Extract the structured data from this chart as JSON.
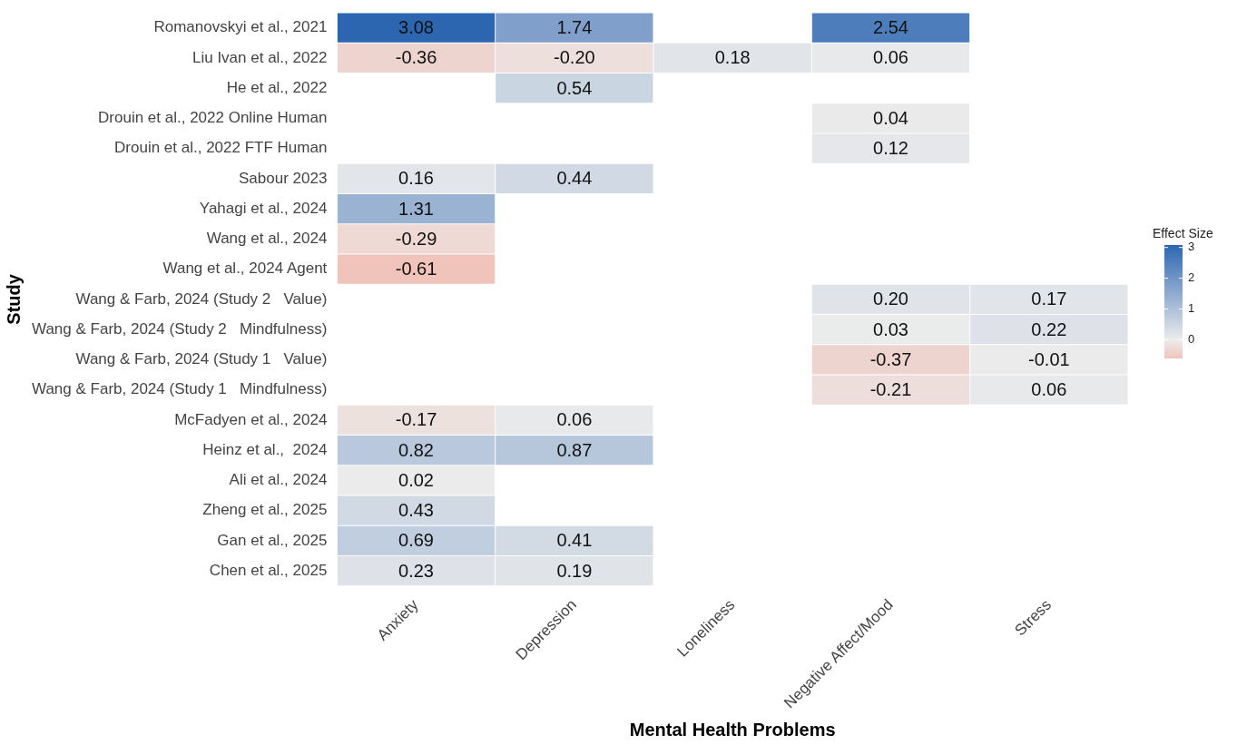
{
  "chart_data": {
    "type": "heatmap",
    "xlabel": "Mental Health Problems",
    "ylabel": "Study",
    "legend_title": "Effect Size",
    "categories": [
      "Anxiety",
      "Depression",
      "Loneliness",
      "Negative Affect/Mood",
      "Stress"
    ],
    "y_categories": [
      "Romanovskyi et al., 2021",
      "Liu Ivan et al., 2022",
      "He et al., 2022",
      "Drouin et al., 2022 Online Human",
      "Drouin et al., 2022 FTF Human",
      "Sabour 2023",
      "Yahagi et al., 2024",
      "Wang et al., 2024",
      "Wang et al., 2024 Agent",
      "Wang & Farb, 2024 (Study 2   Value)",
      "Wang & Farb, 2024 (Study 2   Mindfulness)",
      "Wang & Farb, 2024 (Study 1   Value)",
      "Wang & Farb, 2024 (Study 1   Mindfulness)",
      "McFadyen et al., 2024",
      "Heinz et al.,  2024",
      "Ali et al., 2024",
      "Zheng et al., 2025",
      "Gan et al., 2025",
      "Chen et al., 2025"
    ],
    "cells": [
      [
        3.08,
        1.74,
        null,
        2.54,
        null
      ],
      [
        -0.36,
        -0.2,
        0.18,
        0.06,
        null
      ],
      [
        null,
        0.54,
        null,
        null,
        null
      ],
      [
        null,
        null,
        null,
        0.04,
        null
      ],
      [
        null,
        null,
        null,
        0.12,
        null
      ],
      [
        0.16,
        0.44,
        null,
        null,
        null
      ],
      [
        1.31,
        null,
        null,
        null,
        null
      ],
      [
        -0.29,
        null,
        null,
        null,
        null
      ],
      [
        -0.61,
        null,
        null,
        null,
        null
      ],
      [
        null,
        null,
        null,
        0.2,
        0.17
      ],
      [
        null,
        null,
        null,
        0.03,
        0.22
      ],
      [
        null,
        null,
        null,
        -0.37,
        -0.01
      ],
      [
        null,
        null,
        null,
        -0.21,
        0.06
      ],
      [
        -0.17,
        0.06,
        null,
        null,
        null
      ],
      [
        0.82,
        0.87,
        null,
        null,
        null
      ],
      [
        0.02,
        null,
        null,
        null,
        null
      ],
      [
        0.43,
        null,
        null,
        null,
        null
      ],
      [
        0.69,
        0.41,
        null,
        null,
        null
      ],
      [
        0.23,
        0.19,
        null,
        null,
        null
      ]
    ],
    "cell_labels": [
      [
        "3.08",
        "1.74",
        null,
        "2.54",
        null
      ],
      [
        "-0.36",
        "-0.20",
        "0.18",
        "0.06",
        null
      ],
      [
        null,
        "0.54",
        null,
        null,
        null
      ],
      [
        null,
        null,
        null,
        "0.04",
        null
      ],
      [
        null,
        null,
        null,
        "0.12",
        null
      ],
      [
        "0.16",
        "0.44",
        null,
        null,
        null
      ],
      [
        "1.31",
        null,
        null,
        null,
        null
      ],
      [
        "-0.29",
        null,
        null,
        null,
        null
      ],
      [
        "-0.61",
        null,
        null,
        null,
        null
      ],
      [
        null,
        null,
        null,
        "0.20",
        "0.17"
      ],
      [
        null,
        null,
        null,
        "0.03",
        "0.22"
      ],
      [
        null,
        null,
        null,
        "-0.37",
        "-0.01"
      ],
      [
        null,
        null,
        null,
        "-0.21",
        "0.06"
      ],
      [
        "-0.17",
        "0.06",
        null,
        null,
        null
      ],
      [
        "0.82",
        "0.87",
        null,
        null,
        null
      ],
      [
        "0.02",
        null,
        null,
        null,
        null
      ],
      [
        "0.43",
        null,
        null,
        null,
        null
      ],
      [
        "0.69",
        "0.41",
        null,
        null,
        null
      ],
      [
        "0.23",
        "0.19",
        null,
        null,
        null
      ]
    ],
    "clim": [
      -0.61,
      3.08
    ],
    "cticks": [
      0,
      1,
      2,
      3
    ],
    "data_labels": true
  }
}
